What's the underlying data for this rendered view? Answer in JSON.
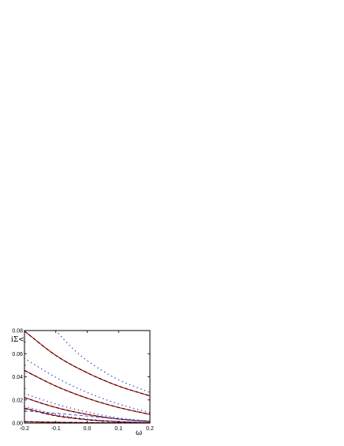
{
  "chart_data": {
    "type": "line",
    "xlabel": "ω",
    "ylabel": "iΣ<",
    "xlim": [
      -0.2,
      0.2
    ],
    "ylim": [
      0.0,
      0.08
    ],
    "xticks": [
      "-0.2",
      "-0.1",
      "0.0",
      "0.1",
      "0.2"
    ],
    "yticks": [
      "0.00",
      "0.02",
      "0.04",
      "0.06",
      "0.08"
    ],
    "grid": false,
    "series": [
      {
        "style": "solid",
        "color": "#d42020",
        "x": [
          -0.2,
          -0.1,
          0.0,
          0.1,
          0.2
        ],
        "y": [
          0.0795,
          0.0585,
          0.0435,
          0.032,
          0.0235
        ]
      },
      {
        "style": "dashed",
        "color": "#000000",
        "x": [
          -0.2,
          -0.1,
          0.0,
          0.1,
          0.2
        ],
        "y": [
          0.0795,
          0.0585,
          0.0435,
          0.032,
          0.0235
        ]
      },
      {
        "style": "dotted",
        "color": "#2a3fd0",
        "x": [
          -0.1,
          -0.05,
          0.0,
          0.1,
          0.2
        ],
        "y": [
          0.08,
          0.0655,
          0.054,
          0.0375,
          0.0265
        ]
      },
      {
        "style": "solid",
        "color": "#d42020",
        "x": [
          -0.2,
          -0.1,
          0.0,
          0.1,
          0.2
        ],
        "y": [
          0.0455,
          0.032,
          0.0215,
          0.0135,
          0.0075
        ]
      },
      {
        "style": "dashed",
        "color": "#000000",
        "x": [
          -0.2,
          -0.1,
          0.0,
          0.1,
          0.2
        ],
        "y": [
          0.0455,
          0.032,
          0.0215,
          0.0135,
          0.0075
        ]
      },
      {
        "style": "dotted",
        "color": "#2a3fd0",
        "x": [
          -0.2,
          -0.1,
          0.0,
          0.1,
          0.2
        ],
        "y": [
          0.056,
          0.0395,
          0.0265,
          0.0165,
          0.009
        ]
      },
      {
        "style": "solid",
        "color": "#d42020",
        "x": [
          -0.2,
          -0.1,
          0.0,
          0.1,
          0.2
        ],
        "y": [
          0.022,
          0.0135,
          0.0075,
          0.0035,
          0.0015
        ]
      },
      {
        "style": "dashed",
        "color": "#000000",
        "x": [
          -0.2,
          -0.1,
          0.0,
          0.1,
          0.2
        ],
        "y": [
          0.022,
          0.0135,
          0.0075,
          0.0035,
          0.0015
        ]
      },
      {
        "style": "dotted",
        "color": "#2a3fd0",
        "x": [
          -0.2,
          -0.1,
          0.0,
          0.1,
          0.2
        ],
        "y": [
          0.0255,
          0.0165,
          0.0095,
          0.0045,
          0.0015
        ]
      },
      {
        "style": "solid",
        "color": "#d42020",
        "x": [
          -0.2,
          -0.1,
          0.0,
          0.1,
          0.2
        ],
        "y": [
          0.013,
          0.0065,
          0.003,
          0.0012,
          0.0004
        ]
      },
      {
        "style": "dashed",
        "color": "#000000",
        "x": [
          -0.2,
          -0.1,
          0.0,
          0.1,
          0.2
        ],
        "y": [
          0.0125,
          0.0062,
          0.0028,
          0.0011,
          0.0004
        ]
      },
      {
        "style": "dotted",
        "color": "#2a3fd0",
        "x": [
          -0.2,
          -0.1,
          0.0,
          0.1,
          0.2
        ],
        "y": [
          0.0145,
          0.0075,
          0.0035,
          0.0014,
          0.0005
        ]
      },
      {
        "style": "solid",
        "color": "#d42020",
        "x": [
          -0.2,
          -0.1,
          0.0,
          0.1,
          0.2
        ],
        "y": [
          0.0012,
          0.0007,
          0.0004,
          0.0002,
          0.0001
        ]
      },
      {
        "style": "dashed",
        "color": "#000000",
        "x": [
          -0.2,
          -0.1,
          0.0,
          0.1,
          0.2
        ],
        "y": [
          0.0012,
          0.0007,
          0.0004,
          0.0002,
          0.0001
        ]
      },
      {
        "style": "dashed",
        "color": "#2a3fd0",
        "x": [
          -0.2,
          -0.1,
          0.0,
          0.1,
          0.2
        ],
        "y": [
          0.0105,
          0.0085,
          0.006,
          0.0035,
          0.0015
        ]
      }
    ]
  }
}
